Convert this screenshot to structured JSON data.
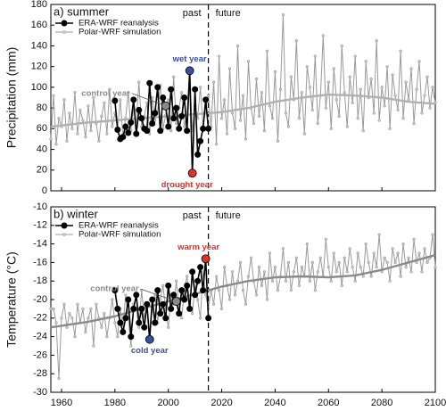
{
  "chart_data": [
    {
      "type": "line",
      "panel_label": "a) summer",
      "ylabel": "Precipitation (mm)",
      "xlim": [
        1956,
        2100
      ],
      "xticks": [
        1960,
        1980,
        2000,
        2020,
        2040,
        2060,
        2080,
        2100
      ],
      "ylim": [
        0,
        180
      ],
      "yticks": [
        0,
        20,
        40,
        60,
        80,
        100,
        120,
        140,
        160,
        180
      ],
      "legend": "upper left",
      "divider_x": 2015,
      "divider_labels": [
        "past",
        "future"
      ],
      "series": [
        {
          "name": "Polar-WRF simulation",
          "color": "#9a9a9a",
          "x": [
            1956,
            1957,
            1958,
            1959,
            1960,
            1961,
            1962,
            1963,
            1964,
            1965,
            1966,
            1967,
            1968,
            1969,
            1970,
            1971,
            1972,
            1973,
            1974,
            1975,
            1976,
            1977,
            1978,
            1979,
            1980,
            1981,
            1982,
            1983,
            1984,
            1985,
            1986,
            1987,
            1988,
            1989,
            1990,
            1991,
            1992,
            1993,
            1994,
            1995,
            1996,
            1997,
            1998,
            1999,
            2000,
            2001,
            2002,
            2003,
            2004,
            2005,
            2006,
            2007,
            2008,
            2009,
            2010,
            2011,
            2012,
            2013,
            2014,
            2015,
            2016,
            2017,
            2018,
            2019,
            2020,
            2021,
            2022,
            2023,
            2024,
            2025,
            2026,
            2027,
            2028,
            2029,
            2030,
            2031,
            2032,
            2033,
            2034,
            2035,
            2036,
            2037,
            2038,
            2039,
            2040,
            2041,
            2042,
            2043,
            2044,
            2045,
            2046,
            2047,
            2048,
            2049,
            2050,
            2051,
            2052,
            2053,
            2054,
            2055,
            2056,
            2057,
            2058,
            2059,
            2060,
            2061,
            2062,
            2063,
            2064,
            2065,
            2066,
            2067,
            2068,
            2069,
            2070,
            2071,
            2072,
            2073,
            2074,
            2075,
            2076,
            2077,
            2078,
            2079,
            2080,
            2081,
            2082,
            2083,
            2084,
            2085,
            2086,
            2087,
            2088,
            2089,
            2090,
            2091,
            2092,
            2093,
            2094,
            2095,
            2096,
            2097,
            2098,
            2099,
            2100
          ],
          "values": [
            50,
            92,
            45,
            70,
            62,
            88,
            48,
            75,
            60,
            95,
            55,
            78,
            68,
            52,
            82,
            58,
            90,
            65,
            48,
            72,
            85,
            55,
            98,
            62,
            75,
            60,
            88,
            52,
            70,
            95,
            58,
            80,
            66,
            105,
            62,
            72,
            85,
            55,
            90,
            68,
            78,
            102,
            60,
            73,
            88,
            58,
            110,
            65,
            80,
            95,
            62,
            75,
            118,
            58,
            82,
            70,
            100,
            62,
            78,
            92,
            62,
            105,
            45,
            130,
            70,
            88,
            55,
            118,
            75,
            60,
            140,
            68,
            92,
            50,
            125,
            80,
            65,
            108,
            72,
            95,
            58,
            135,
            82,
            70,
            115,
            48,
            98,
            170,
            75,
            62,
            110,
            88,
            145,
            70,
            95,
            55,
            120,
            100,
            78,
            130,
            65,
            92,
            150,
            80,
            105,
            60,
            118,
            88,
            72,
            140,
            95,
            62,
            110,
            85,
            130,
            70,
            98,
            58,
            125,
            90,
            108,
            75,
            145,
            68,
            100,
            82,
            120,
            60,
            112,
            92,
            78,
            135,
            70,
            105,
            88,
            118,
            65,
            98,
            125,
            75,
            92,
            110,
            80,
            100,
            85
          ]
        },
        {
          "name": "ERA-WRF reanalysis",
          "color": "#000000",
          "x": [
            1980,
            1981,
            1982,
            1983,
            1984,
            1985,
            1986,
            1987,
            1988,
            1989,
            1990,
            1991,
            1992,
            1993,
            1994,
            1995,
            1996,
            1997,
            1998,
            1999,
            2000,
            2001,
            2002,
            2003,
            2004,
            2005,
            2006,
            2007,
            2008,
            2009,
            2010,
            2011,
            2012,
            2013,
            2014,
            2015
          ],
          "values": [
            87,
            59,
            50,
            52,
            62,
            56,
            66,
            88,
            55,
            78,
            70,
            60,
            58,
            104,
            65,
            75,
            100,
            58,
            90,
            82,
            62,
            98,
            70,
            80,
            60,
            72,
            90,
            58,
            116,
            17,
            98,
            35,
            48,
            60,
            88,
            60
          ]
        }
      ],
      "trend": {
        "color": "#b0b0b0",
        "x": [
          1956,
          1970,
          1980,
          1990,
          2000,
          2010,
          2020,
          2030,
          2040,
          2050,
          2060,
          2070,
          2080,
          2090,
          2100
        ],
        "values": [
          62,
          66,
          68,
          70,
          72,
          74,
          76,
          80,
          86,
          90,
          93,
          92,
          90,
          86,
          84
        ]
      },
      "highlights": [
        {
          "label": "control year",
          "x": 1999,
          "value": 82,
          "color": "#8a8a8a"
        },
        {
          "label": "wet year",
          "x": 2008,
          "value": 116,
          "color": "#3a4fa0"
        },
        {
          "label": "drought year",
          "x": 2009,
          "value": 17,
          "color": "#e0302a"
        }
      ]
    },
    {
      "type": "line",
      "panel_label": "b) winter",
      "ylabel": "Temperature (°C)",
      "xlim": [
        1956,
        2100
      ],
      "xticks": [
        1960,
        1980,
        2000,
        2020,
        2040,
        2060,
        2080,
        2100
      ],
      "ylim": [
        -30,
        -10
      ],
      "yticks": [
        -30,
        -28,
        -26,
        -24,
        -22,
        -20,
        -18,
        -16,
        -14,
        -12,
        -10
      ],
      "legend": "upper left",
      "divider_x": 2015,
      "divider_labels": [
        "past",
        "future"
      ],
      "series": [
        {
          "name": "Polar-WRF simulation",
          "color": "#9a9a9a",
          "x": [
            1956,
            1957,
            1958,
            1959,
            1960,
            1961,
            1962,
            1963,
            1964,
            1965,
            1966,
            1967,
            1968,
            1969,
            1970,
            1971,
            1972,
            1973,
            1974,
            1975,
            1976,
            1977,
            1978,
            1979,
            1980,
            1981,
            1982,
            1983,
            1984,
            1985,
            1986,
            1987,
            1988,
            1989,
            1990,
            1991,
            1992,
            1993,
            1994,
            1995,
            1996,
            1997,
            1998,
            1999,
            2000,
            2001,
            2002,
            2003,
            2004,
            2005,
            2006,
            2007,
            2008,
            2009,
            2010,
            2011,
            2012,
            2013,
            2014,
            2015,
            2016,
            2017,
            2018,
            2019,
            2020,
            2021,
            2022,
            2023,
            2024,
            2025,
            2026,
            2027,
            2028,
            2029,
            2030,
            2031,
            2032,
            2033,
            2034,
            2035,
            2036,
            2037,
            2038,
            2039,
            2040,
            2041,
            2042,
            2043,
            2044,
            2045,
            2046,
            2047,
            2048,
            2049,
            2050,
            2051,
            2052,
            2053,
            2054,
            2055,
            2056,
            2057,
            2058,
            2059,
            2060,
            2061,
            2062,
            2063,
            2064,
            2065,
            2066,
            2067,
            2068,
            2069,
            2070,
            2071,
            2072,
            2073,
            2074,
            2075,
            2076,
            2077,
            2078,
            2079,
            2080,
            2081,
            2082,
            2083,
            2084,
            2085,
            2086,
            2087,
            2088,
            2089,
            2090,
            2091,
            2092,
            2093,
            2094,
            2095,
            2096,
            2097,
            2098,
            2099,
            2100
          ],
          "values": [
            -21,
            -21,
            -22.5,
            -28.5,
            -22,
            -20.5,
            -23,
            -21.5,
            -22,
            -24,
            -20.5,
            -22.5,
            -21,
            -23.5,
            -22,
            -21,
            -25,
            -20.5,
            -22,
            -23,
            -21.5,
            -24,
            -22,
            -20,
            -22.5,
            -24,
            -21,
            -23,
            -19.5,
            -22,
            -25,
            -20.5,
            -21,
            -23,
            -19,
            -22,
            -20.5,
            -24,
            -21,
            -19.5,
            -22.5,
            -20,
            -18.5,
            -21,
            -23,
            -19.5,
            -20.5,
            -18,
            -21,
            -22,
            -19,
            -17.5,
            -20.5,
            -21.5,
            -18.5,
            -20,
            -22,
            -17,
            -19.5,
            -21,
            -19,
            -20.5,
            -17.5,
            -19,
            -21,
            -16.5,
            -18.5,
            -20,
            -17,
            -19.5,
            -18,
            -16,
            -19,
            -20.5,
            -17.5,
            -15.5,
            -18,
            -19.5,
            -16.5,
            -18.5,
            -17,
            -20,
            -15,
            -18,
            -16.5,
            -19,
            -17.5,
            -14.5,
            -18,
            -16,
            -19,
            -17,
            -15.5,
            -18.5,
            -16.5,
            -17.5,
            -14,
            -18,
            -16,
            -19,
            -17,
            -15.5,
            -17.5,
            -13.5,
            -16.5,
            -18,
            -15,
            -17,
            -16,
            -18.5,
            -15.5,
            -17,
            -14.5,
            -16.5,
            -18,
            -15,
            -16.5,
            -17.5,
            -14,
            -16,
            -17.5,
            -15,
            -16.5,
            -13,
            -17,
            -15.5,
            -16,
            -18,
            -14.5,
            -16,
            -15,
            -17.5,
            -14,
            -16.5,
            -15.5,
            -17,
            -13.5,
            -16,
            -15,
            -17,
            -14.5,
            -16,
            -15.5,
            -13,
            -16.5
          ]
        },
        {
          "name": "ERA-WRF reanalysis",
          "color": "#000000",
          "x": [
            1980,
            1981,
            1982,
            1983,
            1984,
            1985,
            1986,
            1987,
            1988,
            1989,
            1990,
            1991,
            1992,
            1993,
            1994,
            1995,
            1996,
            1997,
            1998,
            1999,
            2000,
            2001,
            2002,
            2003,
            2004,
            2005,
            2006,
            2007,
            2008,
            2009,
            2010,
            2011,
            2012,
            2013,
            2014,
            2015
          ],
          "values": [
            -19,
            -21,
            -22.5,
            -23.5,
            -22,
            -20,
            -24,
            -21,
            -19.5,
            -22.5,
            -21,
            -23,
            -20.5,
            -24.3,
            -20,
            -22.5,
            -19,
            -21.5,
            -20.5,
            -22,
            -18.5,
            -21,
            -19.5,
            -20.2,
            -21.5,
            -19,
            -20,
            -18.5,
            -21,
            -17,
            -19.5,
            -18,
            -16.5,
            -19,
            -15.6,
            -22
          ]
        }
      ],
      "trend": {
        "color": "#8a8a8a",
        "x": [
          1956,
          1970,
          1980,
          1990,
          2000,
          2010,
          2020,
          2030,
          2040,
          2050,
          2060,
          2070,
          2080,
          2090,
          2100
        ],
        "values": [
          -23,
          -22.4,
          -21.8,
          -21,
          -20.2,
          -19.4,
          -18.6,
          -18,
          -17.6,
          -17.5,
          -17.6,
          -17.4,
          -16.8,
          -16,
          -15.2
        ]
      },
      "highlights": [
        {
          "label": "warm year",
          "x": 2014,
          "value": -15.6,
          "color": "#e0302a"
        },
        {
          "label": "control year",
          "x": 2003,
          "value": -20.2,
          "color": "#8a8a8a"
        },
        {
          "label": "cold year",
          "x": 1993,
          "value": -24.3,
          "color": "#3a4fa0"
        }
      ]
    }
  ]
}
